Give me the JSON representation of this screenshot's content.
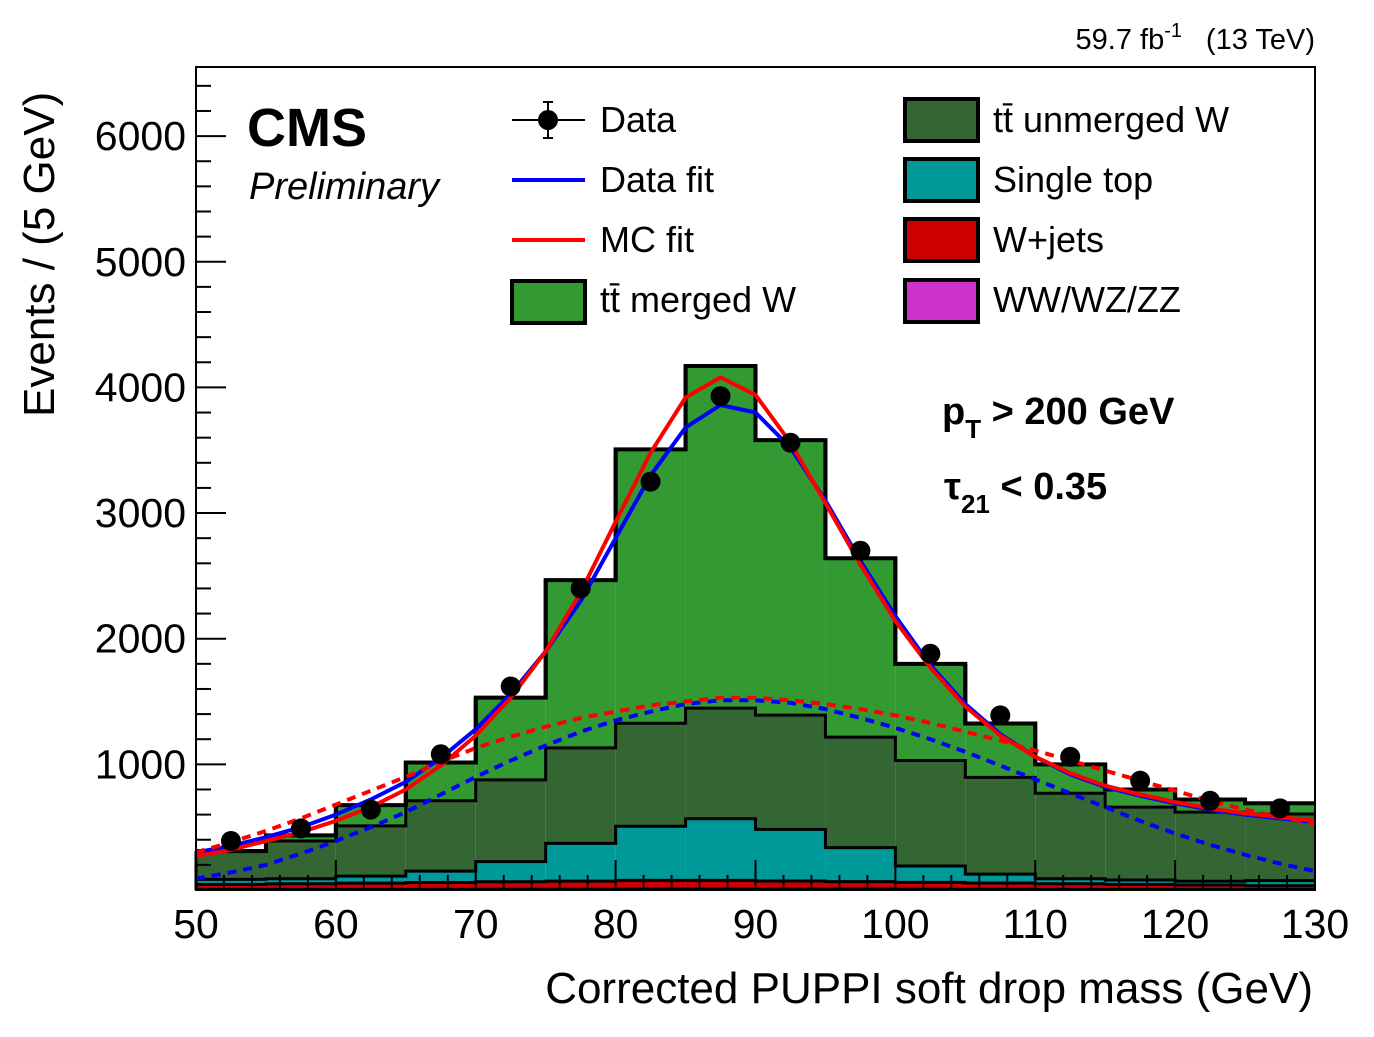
{
  "lumi_label": "59.7 fb",
  "lumi_exp": "-1",
  "lumi_energy": "(13 TeV)",
  "cms_label": "CMS",
  "preliminary_label": "Preliminary",
  "cut_labels": {
    "pt_p": "p",
    "pt_sub": "T",
    "pt_rest": " > 200 GeV",
    "tau_sym": "τ",
    "tau_sub": "21",
    "tau_rest": " < 0.35"
  },
  "chart_data": {
    "type": "bar",
    "xlabel": "Corrected PUPPI soft drop mass (GeV)",
    "ylabel": "Events / (5 GeV)",
    "xlim": [
      50,
      130
    ],
    "ylim": [
      0,
      6550
    ],
    "x_ticks": [
      "50",
      "60",
      "70",
      "80",
      "90",
      "100",
      "110",
      "120",
      "130"
    ],
    "y_ticks": [
      "1000",
      "2000",
      "3000",
      "4000",
      "5000",
      "6000"
    ],
    "bin_edges": [
      50,
      55,
      60,
      65,
      70,
      75,
      80,
      85,
      90,
      95,
      100,
      105,
      110,
      115,
      120,
      125,
      130
    ],
    "stack": [
      {
        "name": "WW/WZ/ZZ",
        "color": "#cc33cc",
        "values": [
          5,
          5,
          5,
          5,
          6,
          6,
          7,
          7,
          7,
          7,
          6,
          6,
          5,
          5,
          5,
          5
        ]
      },
      {
        "name": "W+jets",
        "color": "#cc0000",
        "values": [
          40,
          45,
          50,
          55,
          60,
          65,
          70,
          70,
          65,
          60,
          55,
          50,
          45,
          40,
          35,
          30
        ]
      },
      {
        "name": "Single top",
        "color": "#009999",
        "values": [
          40,
          40,
          55,
          90,
          160,
          300,
          430,
          490,
          410,
          270,
          130,
          70,
          40,
          35,
          30,
          40
        ]
      },
      {
        "name": "tt̄ unmerged W",
        "color": "#336633",
        "values": [
          220,
          300,
          400,
          560,
          650,
          760,
          820,
          880,
          910,
          880,
          840,
          770,
          680,
          580,
          550,
          530
        ]
      },
      {
        "name": "tt̄ merged W",
        "color": "#339933",
        "values": [
          5,
          45,
          165,
          305,
          655,
          1335,
          2180,
          2723,
          2188,
          1423,
          769,
          429,
          230,
          140,
          100,
          85
        ]
      }
    ],
    "data_points": {
      "name": "Data",
      "x": [
        52.5,
        57.5,
        62.5,
        67.5,
        72.5,
        77.5,
        82.5,
        87.5,
        92.5,
        97.5,
        102.5,
        107.5,
        112.5,
        117.5,
        122.5,
        127.5
      ],
      "y": [
        390,
        490,
        640,
        1080,
        1620,
        2400,
        3250,
        3930,
        3560,
        2700,
        1880,
        1390,
        1060,
        870,
        710,
        650
      ]
    },
    "fits": [
      {
        "name": "Data fit",
        "color": "#0000ff",
        "style": "solid",
        "x": [
          50,
          52.5,
          55,
          57.5,
          60,
          62.5,
          65,
          67.5,
          70,
          72.5,
          75,
          77.5,
          80,
          82.5,
          85,
          87.5,
          90,
          92.5,
          95,
          97.5,
          100,
          102.5,
          105,
          107.5,
          110,
          112.5,
          115,
          117.5,
          120,
          122.5,
          125,
          127.5,
          130
        ],
        "y": [
          300,
          350,
          420,
          500,
          600,
          720,
          860,
          1050,
          1280,
          1560,
          1900,
          2300,
          2800,
          3300,
          3680,
          3860,
          3800,
          3520,
          3100,
          2620,
          2180,
          1790,
          1480,
          1240,
          1060,
          920,
          820,
          750,
          690,
          640,
          600,
          570,
          540
        ]
      },
      {
        "name": "MC fit",
        "color": "#ff0000",
        "style": "solid",
        "x": [
          50,
          52.5,
          55,
          57.5,
          60,
          62.5,
          65,
          67.5,
          70,
          72.5,
          75,
          77.5,
          80,
          82.5,
          85,
          87.5,
          90,
          92.5,
          95,
          97.5,
          100,
          102.5,
          105,
          107.5,
          110,
          112.5,
          115,
          117.5,
          120,
          122.5,
          125,
          127.5,
          130
        ],
        "y": [
          270,
          320,
          390,
          460,
          550,
          660,
          800,
          990,
          1230,
          1530,
          1900,
          2370,
          2930,
          3480,
          3920,
          4080,
          3940,
          3560,
          3080,
          2590,
          2140,
          1770,
          1460,
          1230,
          1060,
          930,
          830,
          760,
          700,
          650,
          610,
          580,
          550
        ]
      },
      {
        "name": "Data fit bkg",
        "color": "#0000ff",
        "style": "dashed",
        "x": [
          50,
          52.5,
          55,
          57.5,
          60,
          62.5,
          65,
          67.5,
          70,
          72.5,
          75,
          77.5,
          80,
          82.5,
          85,
          87.5,
          90,
          92.5,
          95,
          97.5,
          100,
          102.5,
          105,
          107.5,
          110,
          112.5,
          115,
          117.5,
          120,
          122.5,
          125,
          127.5,
          130
        ],
        "y": [
          90,
          140,
          200,
          290,
          390,
          500,
          620,
          760,
          900,
          1030,
          1150,
          1260,
          1350,
          1420,
          1480,
          1510,
          1510,
          1490,
          1440,
          1370,
          1290,
          1200,
          1100,
          990,
          880,
          770,
          660,
          550,
          450,
          360,
          280,
          210,
          150
        ]
      },
      {
        "name": "MC fit bkg",
        "color": "#ff0000",
        "style": "dashed",
        "x": [
          50,
          52.5,
          55,
          57.5,
          60,
          62.5,
          65,
          67.5,
          70,
          72.5,
          75,
          77.5,
          80,
          82.5,
          85,
          87.5,
          90,
          92.5,
          95,
          97.5,
          100,
          102.5,
          105,
          107.5,
          110,
          112.5,
          115,
          117.5,
          120,
          122.5,
          125,
          127.5,
          130
        ],
        "y": [
          300,
          380,
          470,
          570,
          680,
          790,
          900,
          1020,
          1130,
          1220,
          1300,
          1370,
          1420,
          1470,
          1500,
          1530,
          1530,
          1510,
          1480,
          1440,
          1390,
          1330,
          1260,
          1190,
          1110,
          1030,
          950,
          870,
          790,
          710,
          640,
          580,
          530
        ]
      }
    ],
    "legend": {
      "position": "top",
      "entries": [
        {
          "label": "Data",
          "kind": "marker"
        },
        {
          "label": "Data fit",
          "kind": "line",
          "color": "#0000ff"
        },
        {
          "label": "MC fit",
          "kind": "line",
          "color": "#ff0000"
        },
        {
          "label": "tt̄ merged W",
          "kind": "box",
          "color": "#339933"
        },
        {
          "label": "tt̄ unmerged W",
          "kind": "box",
          "color": "#336633"
        },
        {
          "label": "Single top",
          "kind": "box",
          "color": "#009999"
        },
        {
          "label": "W+jets",
          "kind": "box",
          "color": "#cc0000"
        },
        {
          "label": "WW/WZ/ZZ",
          "kind": "box",
          "color": "#cc33cc"
        }
      ]
    }
  }
}
